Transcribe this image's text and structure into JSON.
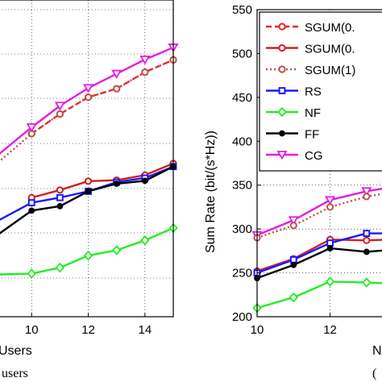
{
  "chart_data": [
    {
      "type": "line",
      "xlabel": "Users",
      "caption": "users",
      "x_ticks": [
        "10",
        "12",
        "14"
      ],
      "xlim": [
        8.6,
        15
      ],
      "ylim": [
        0,
        1
      ],
      "grid": true,
      "series": [
        {
          "name": "SGUM(0.",
          "color": "#e8262a",
          "marker": "circle",
          "dash": "dashed",
          "x": [
            10,
            11,
            12,
            13,
            14,
            15
          ],
          "y": [
            0.578,
            0.64,
            0.693,
            0.72,
            0.772,
            0.811
          ]
        },
        {
          "name": "SGUM(1)",
          "color": "#c0504d",
          "marker": "circle",
          "dash": "dotted",
          "x": [
            8.6,
            10,
            11,
            12,
            13,
            14,
            15
          ],
          "y": [
            0.47,
            0.578,
            0.64,
            0.693,
            0.72,
            0.772,
            0.811
          ]
        },
        {
          "name": "SGUM(0.",
          "color": "#d11f1f",
          "marker": "circle",
          "dash": "solid",
          "x": [
            10,
            11,
            12,
            13,
            14,
            15
          ],
          "y": [
            0.376,
            0.4,
            0.428,
            0.431,
            0.447,
            0.484
          ]
        },
        {
          "name": "RS",
          "color": "#1a1aff",
          "marker": "square",
          "dash": "solid",
          "x": [
            8.6,
            10,
            11,
            12,
            13,
            14,
            15
          ],
          "y": [
            0.293,
            0.36,
            0.376,
            0.396,
            0.425,
            0.438,
            0.474
          ]
        },
        {
          "name": "NF",
          "color": "#22ee22",
          "marker": "diamond",
          "dash": "solid",
          "x": [
            8.6,
            10,
            11,
            12,
            13,
            14,
            15
          ],
          "y": [
            0.133,
            0.136,
            0.155,
            0.193,
            0.21,
            0.241,
            0.28
          ]
        },
        {
          "name": "FF",
          "color": "#000000",
          "marker": "dot",
          "dash": "solid",
          "x": [
            8.6,
            10,
            11,
            12,
            13,
            14,
            15
          ],
          "y": [
            0.246,
            0.335,
            0.349,
            0.396,
            0.42,
            0.429,
            0.474
          ]
        },
        {
          "name": "CG",
          "color": "#e11fe1",
          "marker": "triangle-down",
          "dash": "solid",
          "x": [
            8.6,
            10,
            11,
            12,
            13,
            14,
            15
          ],
          "y": [
            0.495,
            0.598,
            0.666,
            0.722,
            0.767,
            0.812,
            0.85
          ]
        }
      ]
    },
    {
      "type": "line",
      "ylabel": "Sum Rate (bit/(s*Hz))",
      "xlabel": "N",
      "caption": "(",
      "x_ticks": [
        "10",
        "12"
      ],
      "y_ticks": [
        "200",
        "250",
        "300",
        "350",
        "400",
        "450",
        "500",
        "550"
      ],
      "xlim": [
        10,
        13.6
      ],
      "ylim": [
        200,
        550
      ],
      "grid": true,
      "legend_position": "top-right",
      "legend": [
        {
          "label": "SGUM(0.",
          "color": "#e8262a",
          "marker": "circle",
          "dash": "dashed"
        },
        {
          "label": "SGUM(0.",
          "color": "#d11f1f",
          "marker": "circle",
          "dash": "solid"
        },
        {
          "label": "SGUM(1)",
          "color": "#c0504d",
          "marker": "circle",
          "dash": "dotted"
        },
        {
          "label": "RS",
          "color": "#1a1aff",
          "marker": "square",
          "dash": "solid"
        },
        {
          "label": "NF",
          "color": "#22ee22",
          "marker": "diamond",
          "dash": "solid"
        },
        {
          "label": "FF",
          "color": "#000000",
          "marker": "dot",
          "dash": "solid"
        },
        {
          "label": "CG",
          "color": "#e11fe1",
          "marker": "triangle-down",
          "dash": "solid"
        }
      ],
      "series": [
        {
          "name": "CG",
          "color": "#e11fe1",
          "marker": "triangle-down",
          "dash": "solid",
          "x": [
            10,
            11,
            12,
            13,
            13.6
          ],
          "y": [
            293,
            310,
            333,
            343,
            347
          ]
        },
        {
          "name": "SGUM(1)",
          "color": "#c0504d",
          "marker": "circle",
          "dash": "dotted",
          "x": [
            10,
            11,
            12,
            13,
            13.6
          ],
          "y": [
            290,
            304,
            325,
            337,
            341
          ]
        },
        {
          "name": "SGUM(0.",
          "color": "#d11f1f",
          "marker": "circle",
          "dash": "solid",
          "x": [
            10,
            11,
            12,
            13,
            13.6
          ],
          "y": [
            252,
            266,
            288,
            287,
            288
          ]
        },
        {
          "name": "RS",
          "color": "#1a1aff",
          "marker": "square",
          "dash": "solid",
          "x": [
            10,
            11,
            12,
            13,
            13.6
          ],
          "y": [
            250,
            265,
            284,
            295,
            295
          ]
        },
        {
          "name": "FF",
          "color": "#000000",
          "marker": "dot",
          "dash": "solid",
          "x": [
            10,
            11,
            12,
            13,
            13.6
          ],
          "y": [
            244,
            259,
            278,
            274,
            276
          ]
        },
        {
          "name": "NF",
          "color": "#22ee22",
          "marker": "diamond",
          "dash": "solid",
          "x": [
            10,
            11,
            12,
            13,
            13.6
          ],
          "y": [
            210,
            222,
            240,
            239,
            238
          ]
        }
      ]
    }
  ]
}
